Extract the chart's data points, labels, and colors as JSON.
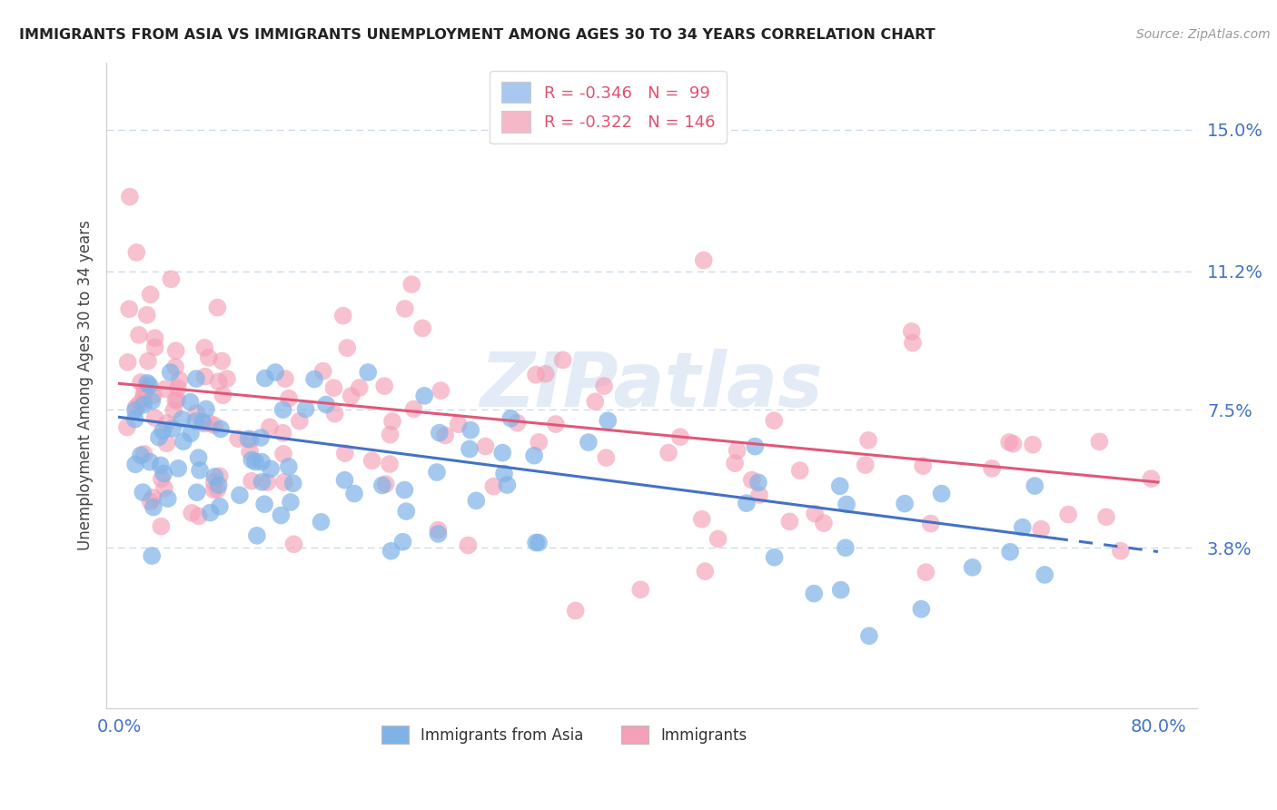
{
  "title": "IMMIGRANTS FROM ASIA VS IMMIGRANTS UNEMPLOYMENT AMONG AGES 30 TO 34 YEARS CORRELATION CHART",
  "source_text": "Source: ZipAtlas.com",
  "ylabel": "Unemployment Among Ages 30 to 34 years",
  "xlim": [
    -0.01,
    0.83
  ],
  "ylim": [
    -0.005,
    0.168
  ],
  "yticks": [
    0.038,
    0.075,
    0.112,
    0.15
  ],
  "ytick_labels": [
    "3.8%",
    "7.5%",
    "11.2%",
    "15.0%"
  ],
  "xticks": [
    0.0,
    0.8
  ],
  "xtick_labels": [
    "0.0%",
    "80.0%"
  ],
  "legend1_label1": "R = -0.346   N =  99",
  "legend1_label2": "R = -0.322   N = 146",
  "legend1_color1": "#a8c8f0",
  "legend1_color2": "#f5b8c8",
  "series1_color": "#7fb3e8",
  "series2_color": "#f4a0b8",
  "trendline1_color": "#4472c4",
  "trendline2_color": "#e05878",
  "trendline1_solid_end": 0.72,
  "watermark": "ZIPatlas",
  "watermark_color": "#d0dff0",
  "legend_text_color": "#e05070",
  "legend_N_color": "#1a6ab5",
  "grid_color": "#c8d8e8",
  "axis_text_color": "#4472c4",
  "title_color": "#222222",
  "source_color": "#999999"
}
